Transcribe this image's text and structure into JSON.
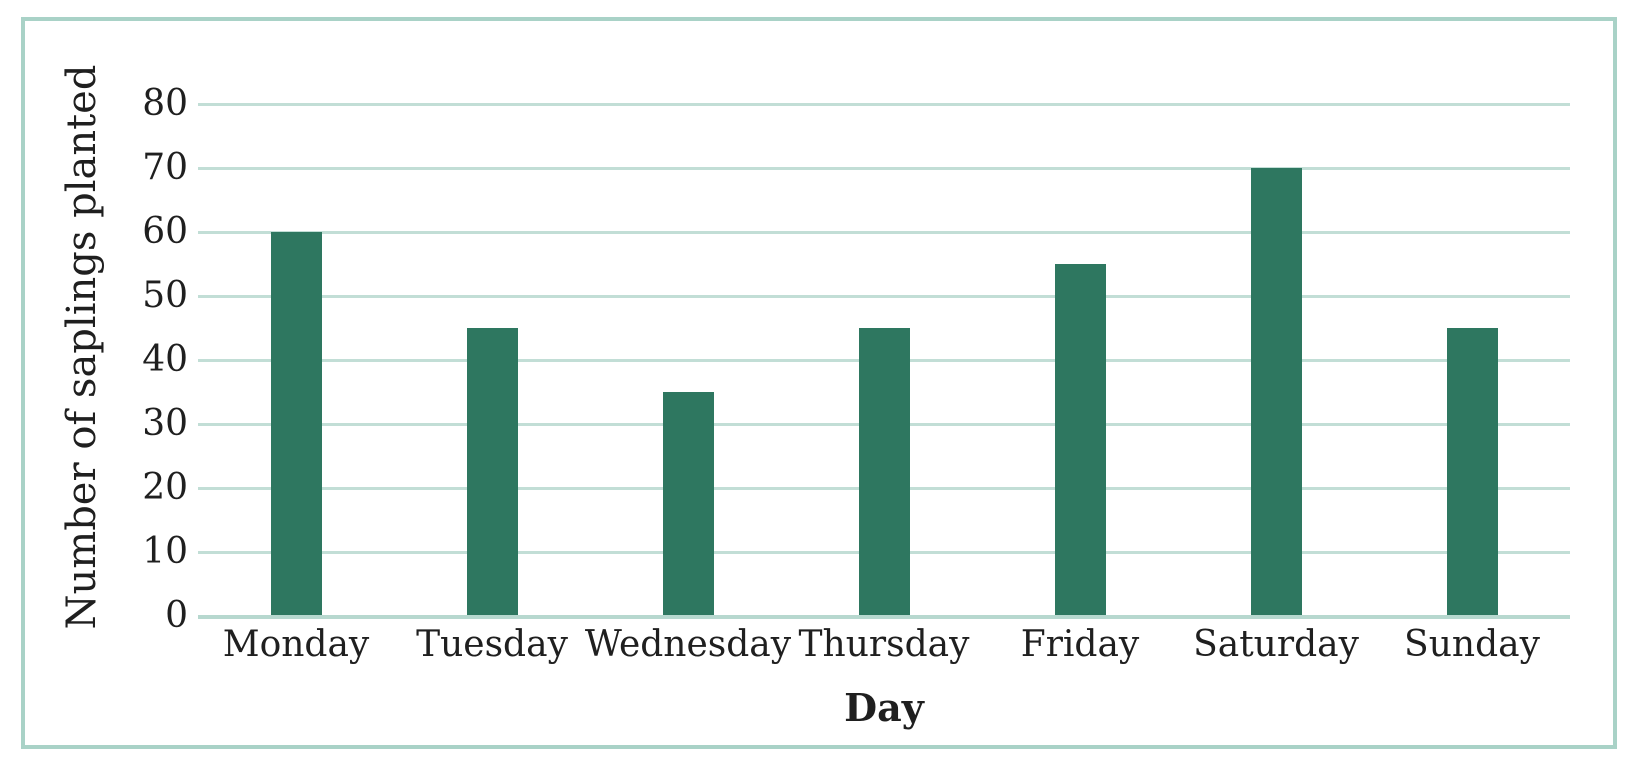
{
  "chart_data": {
    "type": "bar",
    "title": "",
    "xlabel": "Day",
    "ylabel": "Number of saplings planted",
    "categories": [
      "Monday",
      "Tuesday",
      "Wednesday",
      "Thursday",
      "Friday",
      "Saturday",
      "Sunday"
    ],
    "values": [
      60,
      45,
      35,
      45,
      55,
      70,
      45
    ],
    "ylim": [
      0,
      80
    ],
    "yticks": [
      0,
      10,
      20,
      30,
      40,
      50,
      60,
      70,
      80
    ],
    "grid": "horizontal gridlines only",
    "legend": "none",
    "colors": {
      "bar": "#2e7760",
      "gridline": "#c2ded6",
      "axis_line": "#b7d8cf",
      "frame_border": "#a9d2c7",
      "text": "#1f1f1f",
      "background": "#ffffff"
    }
  }
}
